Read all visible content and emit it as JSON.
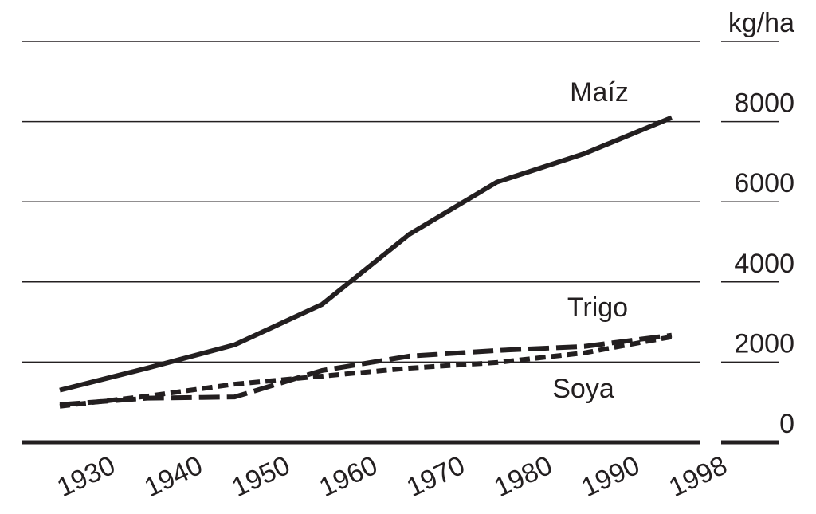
{
  "chart_data": {
    "type": "line",
    "y_axis_label": "kg/ha",
    "categories": [
      "1930",
      "1940",
      "1950",
      "1960",
      "1970",
      "1980",
      "1990",
      "1998"
    ],
    "series": [
      {
        "name": "Maíz",
        "color": "#231f20",
        "dash": "solid",
        "values": [
          1300,
          1850,
          2430,
          3440,
          5190,
          6490,
          7200,
          8100
        ]
      },
      {
        "name": "Trigo",
        "color": "#231f20",
        "dash": "long",
        "values": [
          940,
          1100,
          1130,
          1790,
          2150,
          2290,
          2390,
          2670
        ]
      },
      {
        "name": "Soya",
        "color": "#231f20",
        "dash": "short",
        "values": [
          900,
          1150,
          1450,
          1650,
          1850,
          1990,
          2230,
          2630
        ]
      }
    ],
    "ylim": [
      0,
      10000
    ],
    "yticks": [
      0,
      2000,
      4000,
      6000,
      8000
    ],
    "grid": true
  }
}
